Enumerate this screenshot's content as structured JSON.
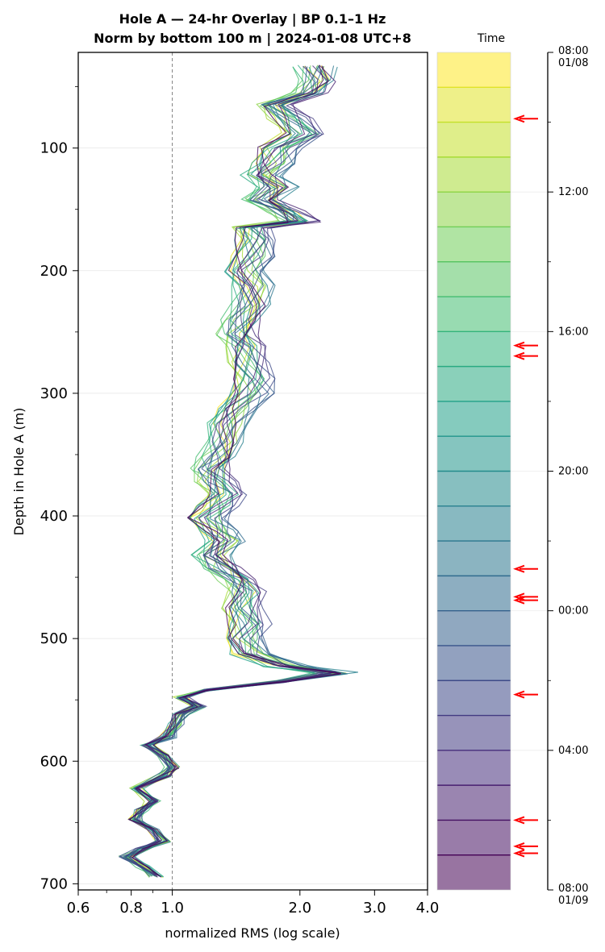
{
  "title": {
    "line1": "Hole A — 24-hr Overlay  |  BP 0.1–1 Hz",
    "line2": "Norm by bottom 100 m  |  2024-01-08 UTC+8"
  },
  "chart_data": {
    "type": "line",
    "title": "Hole A — 24-hr Overlay  |  BP 0.1–1 Hz\nNorm by bottom 100 m  |  2024-01-08 UTC+8",
    "xlabel": "normalized RMS  (log scale)",
    "ylabel": "Depth in Hole A (m)",
    "x_scale": "log",
    "xlim": [
      0.6,
      4.0
    ],
    "ylim": [
      705,
      22
    ],
    "x_ticks": [
      "0.6",
      "0.8",
      "1.0",
      "2.0",
      "3.0",
      "4.0"
    ],
    "x_tick_values": [
      0.6,
      0.8,
      1.0,
      2.0,
      3.0,
      4.0
    ],
    "y_ticks": [
      "100",
      "200",
      "300",
      "400",
      "500",
      "600",
      "700"
    ],
    "y_tick_values": [
      100,
      200,
      300,
      400,
      500,
      600,
      700
    ],
    "reference_line": {
      "x": 1.0,
      "style": "dashed",
      "color": "#808080"
    },
    "grid": "horizontal",
    "profile": [
      [
        33,
        2.1
      ],
      [
        45,
        2.15
      ],
      [
        55,
        2.05
      ],
      [
        65,
        1.7
      ],
      [
        75,
        1.85
      ],
      [
        88,
        2.0
      ],
      [
        100,
        1.75
      ],
      [
        112,
        1.7
      ],
      [
        122,
        1.6
      ],
      [
        132,
        1.72
      ],
      [
        142,
        1.58
      ],
      [
        152,
        1.8
      ],
      [
        160,
        1.95
      ],
      [
        165,
        1.5
      ],
      [
        175,
        1.55
      ],
      [
        188,
        1.52
      ],
      [
        200,
        1.45
      ],
      [
        212,
        1.5
      ],
      [
        228,
        1.5
      ],
      [
        240,
        1.42
      ],
      [
        252,
        1.4
      ],
      [
        262,
        1.45
      ],
      [
        275,
        1.48
      ],
      [
        288,
        1.52
      ],
      [
        300,
        1.5
      ],
      [
        312,
        1.4
      ],
      [
        325,
        1.32
      ],
      [
        340,
        1.3
      ],
      [
        352,
        1.25
      ],
      [
        362,
        1.2
      ],
      [
        372,
        1.24
      ],
      [
        382,
        1.3
      ],
      [
        392,
        1.25
      ],
      [
        402,
        1.18
      ],
      [
        412,
        1.25
      ],
      [
        420,
        1.3
      ],
      [
        432,
        1.2
      ],
      [
        442,
        1.28
      ],
      [
        452,
        1.4
      ],
      [
        462,
        1.45
      ],
      [
        475,
        1.42
      ],
      [
        488,
        1.48
      ],
      [
        500,
        1.45
      ],
      [
        512,
        1.5
      ],
      [
        522,
        1.8
      ],
      [
        528,
        2.35
      ],
      [
        535,
        1.8
      ],
      [
        542,
        1.2
      ],
      [
        548,
        1.05
      ],
      [
        555,
        1.15
      ],
      [
        562,
        1.05
      ],
      [
        570,
        1.02
      ],
      [
        580,
        0.98
      ],
      [
        587,
        0.88
      ],
      [
        595,
        0.95
      ],
      [
        605,
        1.0
      ],
      [
        612,
        0.95
      ],
      [
        622,
        0.82
      ],
      [
        632,
        0.9
      ],
      [
        640,
        0.85
      ],
      [
        648,
        0.82
      ],
      [
        656,
        0.9
      ],
      [
        665,
        0.95
      ],
      [
        672,
        0.85
      ],
      [
        678,
        0.78
      ],
      [
        686,
        0.85
      ],
      [
        694,
        0.92
      ]
    ],
    "series_count": 24,
    "series_times": [
      "08:00",
      "09:00",
      "10:00",
      "11:00",
      "12:00",
      "13:00",
      "14:00",
      "15:00",
      "16:00",
      "17:00",
      "18:00",
      "19:00",
      "20:00",
      "21:00",
      "22:00",
      "23:00",
      "00:00",
      "01:00",
      "02:00",
      "03:00",
      "04:00",
      "05:00",
      "06:00",
      "07:00"
    ],
    "colorbar": {
      "title": "Time",
      "ticks": [
        {
          "label": "08:00\n01/08",
          "hour": 0
        },
        {
          "label": "12:00",
          "hour": 4
        },
        {
          "label": "16:00",
          "hour": 8
        },
        {
          "label": "20:00",
          "hour": 12
        },
        {
          "label": "00:00",
          "hour": 16
        },
        {
          "label": "04:00",
          "hour": 20
        },
        {
          "label": "08:00\n01/09",
          "hour": 24
        }
      ],
      "arrows_hour": [
        1.9,
        8.4,
        8.7,
        14.8,
        15.6,
        15.7,
        18.4,
        22.0,
        22.75,
        22.95
      ],
      "arrow_color": "#ff0000"
    }
  }
}
